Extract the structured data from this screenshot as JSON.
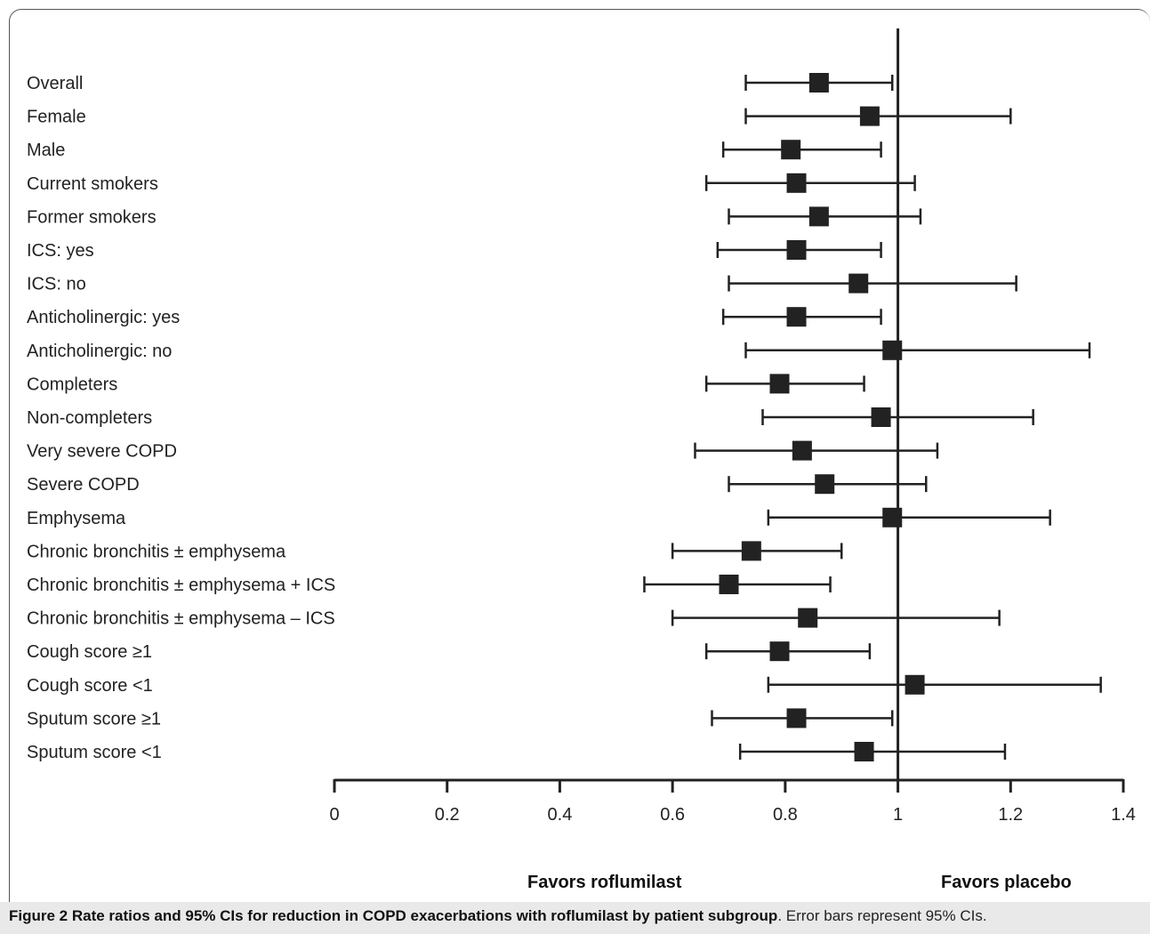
{
  "chart_data": {
    "type": "forest",
    "rows": [
      {
        "label": "Overall",
        "estimate": 0.86,
        "ci_low": 0.73,
        "ci_high": 0.99
      },
      {
        "label": "Female",
        "estimate": 0.95,
        "ci_low": 0.73,
        "ci_high": 1.2
      },
      {
        "label": "Male",
        "estimate": 0.81,
        "ci_low": 0.69,
        "ci_high": 0.97
      },
      {
        "label": "Current smokers",
        "estimate": 0.82,
        "ci_low": 0.66,
        "ci_high": 1.03
      },
      {
        "label": "Former smokers",
        "estimate": 0.86,
        "ci_low": 0.7,
        "ci_high": 1.04
      },
      {
        "label": "ICS: yes",
        "estimate": 0.82,
        "ci_low": 0.68,
        "ci_high": 0.97
      },
      {
        "label": "ICS: no",
        "estimate": 0.93,
        "ci_low": 0.7,
        "ci_high": 1.21
      },
      {
        "label": "Anticholinergic: yes",
        "estimate": 0.82,
        "ci_low": 0.69,
        "ci_high": 0.97
      },
      {
        "label": "Anticholinergic: no",
        "estimate": 0.99,
        "ci_low": 0.73,
        "ci_high": 1.34
      },
      {
        "label": "Completers",
        "estimate": 0.79,
        "ci_low": 0.66,
        "ci_high": 0.94
      },
      {
        "label": "Non-completers",
        "estimate": 0.97,
        "ci_low": 0.76,
        "ci_high": 1.24
      },
      {
        "label": "Very severe COPD",
        "estimate": 0.83,
        "ci_low": 0.64,
        "ci_high": 1.07
      },
      {
        "label": "Severe COPD",
        "estimate": 0.87,
        "ci_low": 0.7,
        "ci_high": 1.05
      },
      {
        "label": "Emphysema",
        "estimate": 0.99,
        "ci_low": 0.77,
        "ci_high": 1.27
      },
      {
        "label": "Chronic bronchitis ± emphysema",
        "estimate": 0.74,
        "ci_low": 0.6,
        "ci_high": 0.9
      },
      {
        "label": "Chronic bronchitis ± emphysema + ICS",
        "estimate": 0.7,
        "ci_low": 0.55,
        "ci_high": 0.88
      },
      {
        "label": "Chronic bronchitis ± emphysema – ICS",
        "estimate": 0.84,
        "ci_low": 0.6,
        "ci_high": 1.18
      },
      {
        "label": "Cough score ≥1",
        "estimate": 0.79,
        "ci_low": 0.66,
        "ci_high": 0.95
      },
      {
        "label": "Cough score <1",
        "estimate": 1.03,
        "ci_low": 0.77,
        "ci_high": 1.36
      },
      {
        "label": "Sputum score ≥1",
        "estimate": 0.82,
        "ci_low": 0.67,
        "ci_high": 0.99
      },
      {
        "label": "Sputum score <1",
        "estimate": 0.94,
        "ci_low": 0.72,
        "ci_high": 1.19
      }
    ],
    "xlim": [
      0,
      1.4
    ],
    "reference_line": 1,
    "xticks": [
      "0",
      "0.2",
      "0.4",
      "0.6",
      "0.8",
      "1",
      "1.2",
      "1.4"
    ],
    "xtick_values": [
      0,
      0.2,
      0.4,
      0.6,
      0.8,
      1,
      1.2,
      1.4
    ],
    "favors_left": "Favors roflumilast",
    "favors_right": "Favors placebo",
    "marker": "square",
    "color": "#222222"
  },
  "caption": {
    "bold": "Figure 2 Rate ratios and 95% CIs for reduction in COPD exacerbations with roflumilast by patient subgroup",
    "rest": ". Error bars represent 95% CIs."
  }
}
